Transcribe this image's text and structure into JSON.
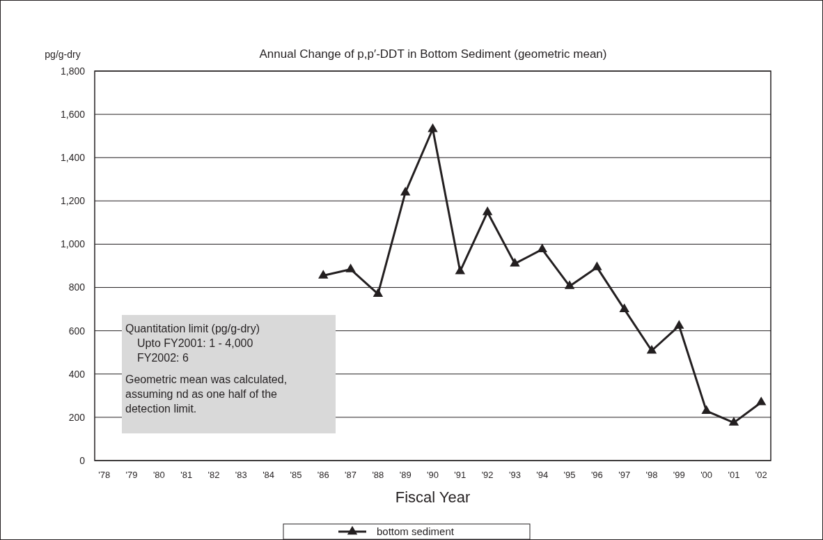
{
  "chart_data": {
    "type": "line",
    "title": "Annual Change of p,p′-DDT in Bottom Sediment (geometric mean)",
    "xlabel": "Fiscal Year",
    "ylabel": "pg/g-dry",
    "categories": [
      "'78",
      "'79",
      "'80",
      "'81",
      "'82",
      "'83",
      "'84",
      "'85",
      "'86",
      "'87",
      "'88",
      "'89",
      "'90",
      "'91",
      "'92",
      "'93",
      "'94",
      "'95",
      "'96",
      "'97",
      "'98",
      "'99",
      "'00",
      "'01",
      "'02"
    ],
    "series": [
      {
        "name": "bottom sediment",
        "color": "#231f20",
        "values": [
          null,
          null,
          null,
          null,
          null,
          null,
          null,
          null,
          855,
          884,
          770,
          1239,
          1532,
          875,
          1148,
          910,
          976,
          806,
          893,
          699,
          508,
          623,
          229,
          175,
          269
        ]
      }
    ],
    "ylim": [
      0,
      1800
    ],
    "yticks": [
      0,
      200,
      400,
      600,
      800,
      {
        "value": 1000,
        "label": "1,000"
      },
      {
        "value": 1200,
        "label": "1,200"
      },
      {
        "value": 1400,
        "label": "1,400"
      },
      {
        "value": 1600,
        "label": "1,600"
      },
      {
        "value": 1800,
        "label": "1,800"
      }
    ],
    "grid": "y",
    "legend": "bottom",
    "marker": "triangle",
    "line_style": "solid",
    "annotations": [
      "Quantitation limit (pg/g-dry)\nUpto FY2001: 1 - 4,000\nFY2002: 6",
      "Geometric mean was calculated,\nassuming nd as one half of the\ndetection limit."
    ]
  }
}
